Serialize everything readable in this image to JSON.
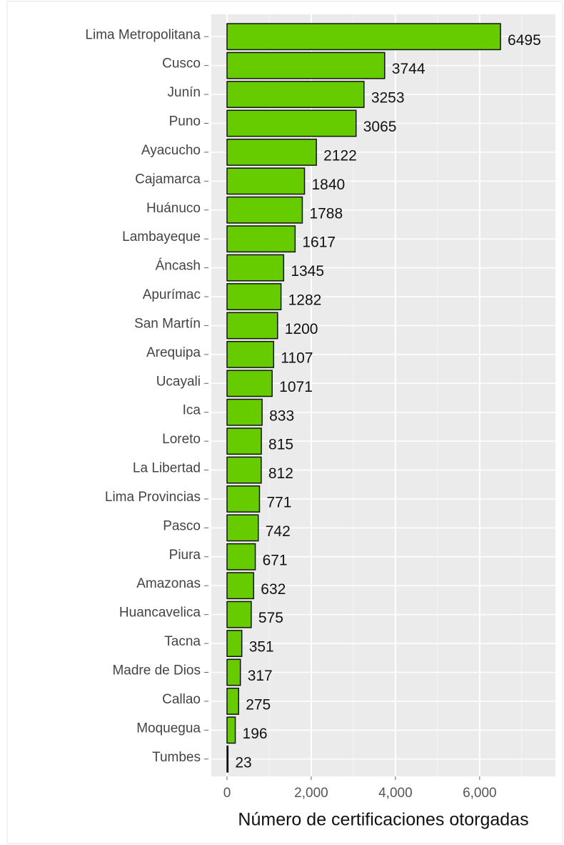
{
  "chart_data": {
    "type": "bar",
    "orientation": "horizontal",
    "categories": [
      "Lima Metropolitana",
      "Cusco",
      "Junín",
      "Puno",
      "Ayacucho",
      "Cajamarca",
      "Huánuco",
      "Lambayeque",
      "Áncash",
      "Apurímac",
      "San Martín",
      "Arequipa",
      "Ucayali",
      "Ica",
      "Loreto",
      "La Libertad",
      "Lima Provincias",
      "Pasco",
      "Piura",
      "Amazonas",
      "Huancavelica",
      "Tacna",
      "Madre de Dios",
      "Callao",
      "Moquegua",
      "Tumbes"
    ],
    "values": [
      6495,
      3744,
      3253,
      3065,
      2122,
      1840,
      1788,
      1617,
      1345,
      1282,
      1200,
      1107,
      1071,
      833,
      815,
      812,
      771,
      742,
      671,
      632,
      575,
      351,
      317,
      275,
      196,
      23
    ],
    "color": "#66cc00",
    "xlabel": "Número de certificaciones otorgadas",
    "xlim": [
      -373,
      7800
    ],
    "xticks": [
      0,
      {
        "value": 2000,
        "label": "2,000"
      },
      {
        "value": 4000,
        "label": "4,000"
      },
      {
        "value": 6000,
        "label": "6,000"
      }
    ],
    "xminor": [
      1000,
      3000,
      5000,
      7000
    ],
    "grid": true
  }
}
